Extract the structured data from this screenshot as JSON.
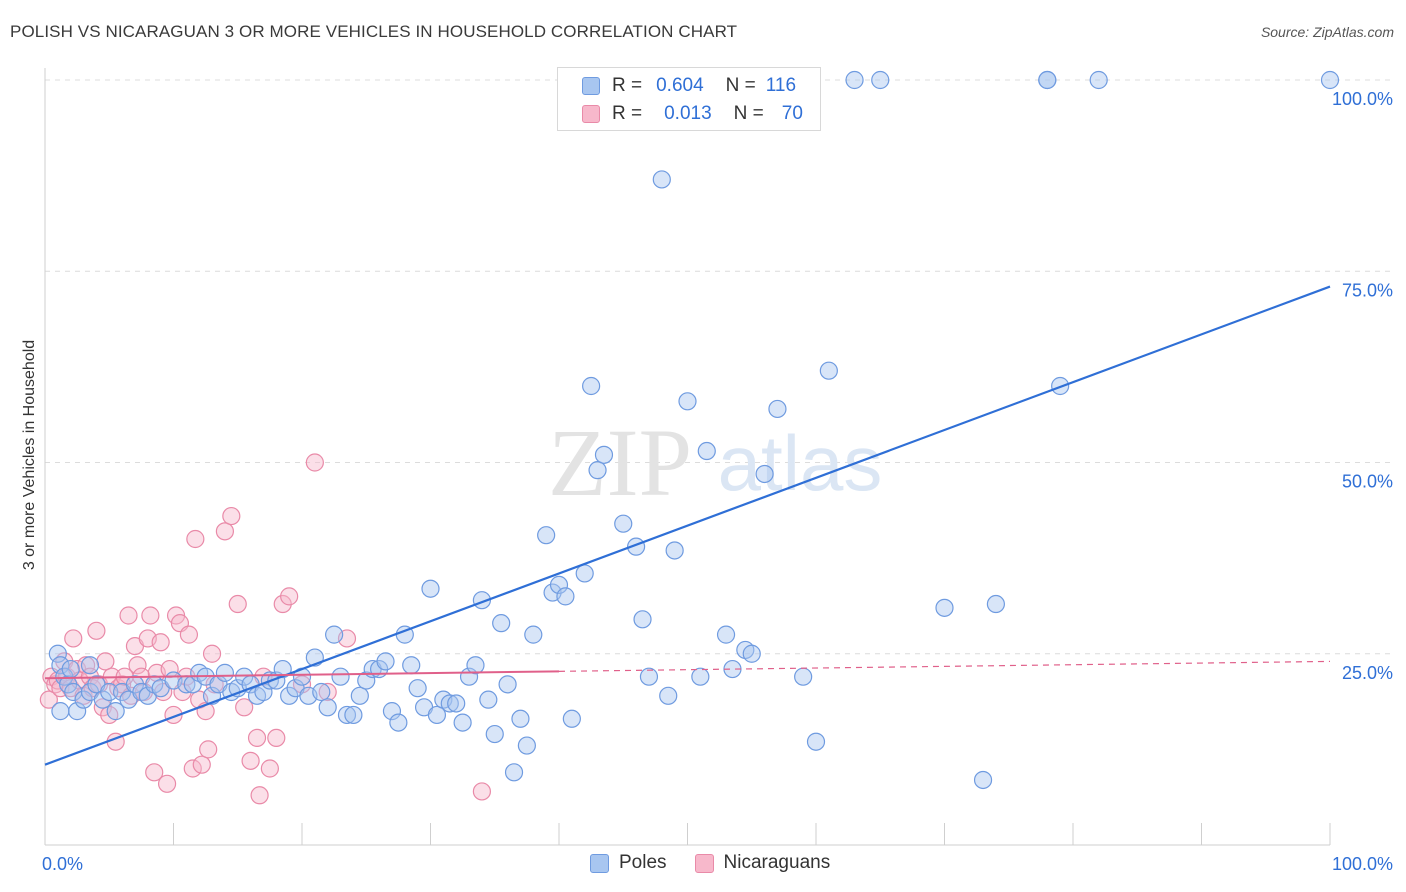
{
  "title": "POLISH VS NICARAGUAN 3 OR MORE VEHICLES IN HOUSEHOLD CORRELATION CHART",
  "source": "Source: ZipAtlas.com",
  "watermark": {
    "zip": "ZIP",
    "atlas": "atlas"
  },
  "legend": {
    "rows": [
      {
        "r_label": "R =",
        "r_value": "0.604",
        "n_label": "N =",
        "n_value": "116"
      },
      {
        "r_label": "R =",
        "r_value": "0.013",
        "n_label": "N =",
        "n_value": "70"
      }
    ]
  },
  "bottom_legend": {
    "poles": "Poles",
    "nicaraguans": "Nicaraguans"
  },
  "colors": {
    "poles_fill": "#a8c6f0",
    "poles_stroke": "#6f9be0",
    "poles_line": "#2f6fd6",
    "nic_fill": "#f7b8cb",
    "nic_stroke": "#e98aa8",
    "nic_line": "#e0608a",
    "grid": "#dcdcdc",
    "tick_text": "#2f6fd6"
  },
  "chart_data": {
    "type": "scatter",
    "title": "POLISH VS NICARAGUAN 3 OR MORE VEHICLES IN HOUSEHOLD CORRELATION CHART",
    "xlabel": "",
    "ylabel": "3 or more Vehicles in Household",
    "xlim": [
      0,
      100
    ],
    "ylim": [
      0,
      100
    ],
    "x_tick_labels": [
      {
        "value": 0,
        "label": "0.0%"
      },
      {
        "value": 100,
        "label": "100.0%"
      }
    ],
    "y_tick_labels": [
      {
        "value": 25,
        "label": "25.0%"
      },
      {
        "value": 50,
        "label": "50.0%"
      },
      {
        "value": 75,
        "label": "75.0%"
      },
      {
        "value": 100,
        "label": "100.0%"
      }
    ],
    "series": [
      {
        "name": "Poles",
        "R": 0.604,
        "N": 116,
        "trend": {
          "x": [
            0,
            100
          ],
          "y": [
            10.5,
            73.0
          ],
          "style": "solid"
        },
        "points": [
          [
            1.0,
            25
          ],
          [
            1.2,
            23.5
          ],
          [
            1.5,
            22
          ],
          [
            1.8,
            21
          ],
          [
            2.0,
            23
          ],
          [
            2.2,
            20
          ],
          [
            2.5,
            17.5
          ],
          [
            3.0,
            19
          ],
          [
            3.5,
            20
          ],
          [
            4.0,
            21
          ],
          [
            4.5,
            19
          ],
          [
            5.0,
            20
          ],
          [
            5.5,
            17.5
          ],
          [
            6.0,
            20
          ],
          [
            6.5,
            19
          ],
          [
            7.0,
            21
          ],
          [
            7.5,
            20
          ],
          [
            8.0,
            19.5
          ],
          [
            8.5,
            21
          ],
          [
            9.0,
            20.5
          ],
          [
            10,
            21.5
          ],
          [
            11,
            21
          ],
          [
            11.5,
            21
          ],
          [
            12,
            22.5
          ],
          [
            12.5,
            22
          ],
          [
            13,
            19.5
          ],
          [
            13.5,
            21
          ],
          [
            14,
            22.5
          ],
          [
            14.5,
            20
          ],
          [
            15,
            20.5
          ],
          [
            15.5,
            22
          ],
          [
            16,
            21
          ],
          [
            16.5,
            19.5
          ],
          [
            17,
            20
          ],
          [
            17.5,
            21.5
          ],
          [
            18,
            21.5
          ],
          [
            18.5,
            23
          ],
          [
            19,
            19.5
          ],
          [
            19.5,
            20.5
          ],
          [
            20,
            22
          ],
          [
            20.5,
            19.5
          ],
          [
            21,
            24.5
          ],
          [
            21.5,
            20
          ],
          [
            22,
            18
          ],
          [
            22.5,
            27.5
          ],
          [
            23,
            22
          ],
          [
            23.5,
            17
          ],
          [
            24,
            17
          ],
          [
            24.5,
            19.5
          ],
          [
            25,
            21.5
          ],
          [
            25.5,
            23
          ],
          [
            26,
            23
          ],
          [
            26.5,
            24
          ],
          [
            27,
            17.5
          ],
          [
            27.5,
            16
          ],
          [
            28,
            27.5
          ],
          [
            28.5,
            23.5
          ],
          [
            29,
            20.5
          ],
          [
            29.5,
            18
          ],
          [
            30,
            33.5
          ],
          [
            30.5,
            17
          ],
          [
            31,
            19
          ],
          [
            31.5,
            18.5
          ],
          [
            32,
            18.5
          ],
          [
            32.5,
            16
          ],
          [
            33,
            22
          ],
          [
            33.5,
            23.5
          ],
          [
            34,
            32
          ],
          [
            34.5,
            19
          ],
          [
            35,
            14.5
          ],
          [
            35.5,
            29
          ],
          [
            36,
            21
          ],
          [
            36.5,
            9.5
          ],
          [
            37,
            16.5
          ],
          [
            37.5,
            13
          ],
          [
            38,
            27.5
          ],
          [
            39,
            40.5
          ],
          [
            39.5,
            33
          ],
          [
            40,
            34
          ],
          [
            40.5,
            32.5
          ],
          [
            41,
            16.5
          ],
          [
            42,
            35.5
          ],
          [
            42.5,
            60
          ],
          [
            43,
            49
          ],
          [
            43.5,
            51
          ],
          [
            45,
            42
          ],
          [
            46,
            39
          ],
          [
            46.5,
            29.5
          ],
          [
            47,
            22
          ],
          [
            48,
            87
          ],
          [
            48.5,
            19.5
          ],
          [
            49,
            38.5
          ],
          [
            50,
            58
          ],
          [
            51,
            22
          ],
          [
            51.5,
            51.5
          ],
          [
            53,
            27.5
          ],
          [
            53.5,
            23
          ],
          [
            54.5,
            25.5
          ],
          [
            55,
            25
          ],
          [
            56,
            48.5
          ],
          [
            57,
            57
          ],
          [
            59,
            22
          ],
          [
            60,
            13.5
          ],
          [
            61,
            62
          ],
          [
            63,
            100
          ],
          [
            65,
            100
          ],
          [
            70,
            31
          ],
          [
            73,
            8.5
          ],
          [
            74,
            31.5
          ],
          [
            78,
            100
          ],
          [
            78,
            100
          ],
          [
            79,
            60
          ],
          [
            82,
            100
          ],
          [
            100,
            100
          ],
          [
            1.2,
            17.5
          ],
          [
            3.5,
            23.5
          ]
        ]
      },
      {
        "name": "Nicaraguans",
        "R": 0.013,
        "N": 70,
        "trend": {
          "x": [
            0,
            40,
            100
          ],
          "y": [
            21.8,
            22.7,
            24.0
          ],
          "style": "solid-then-dashed"
        },
        "points": [
          [
            0.3,
            19
          ],
          [
            0.5,
            22
          ],
          [
            0.8,
            21
          ],
          [
            1.0,
            21.5
          ],
          [
            1.2,
            20.5
          ],
          [
            1.5,
            24
          ],
          [
            1.7,
            22
          ],
          [
            2.0,
            20.5
          ],
          [
            2.2,
            27
          ],
          [
            2.5,
            23
          ],
          [
            2.7,
            21.5
          ],
          [
            3.0,
            19.5
          ],
          [
            3.2,
            23.5
          ],
          [
            3.5,
            22
          ],
          [
            3.7,
            20.5
          ],
          [
            4.0,
            28
          ],
          [
            4.2,
            21
          ],
          [
            4.5,
            18
          ],
          [
            4.7,
            24
          ],
          [
            5.0,
            17
          ],
          [
            5.2,
            22
          ],
          [
            5.5,
            13.5
          ],
          [
            5.7,
            20.5
          ],
          [
            6.0,
            21
          ],
          [
            6.2,
            22
          ],
          [
            6.5,
            30
          ],
          [
            6.7,
            19.5
          ],
          [
            7.0,
            26
          ],
          [
            7.2,
            23.5
          ],
          [
            7.5,
            22
          ],
          [
            7.7,
            20
          ],
          [
            8.0,
            27
          ],
          [
            8.2,
            30
          ],
          [
            8.5,
            9.5
          ],
          [
            8.7,
            22.5
          ],
          [
            9.0,
            26.5
          ],
          [
            9.2,
            20
          ],
          [
            9.5,
            8
          ],
          [
            9.7,
            23
          ],
          [
            10,
            17
          ],
          [
            10.2,
            30
          ],
          [
            10.5,
            29
          ],
          [
            10.7,
            20
          ],
          [
            11,
            22
          ],
          [
            11.2,
            27.5
          ],
          [
            11.5,
            10
          ],
          [
            11.7,
            40
          ],
          [
            12,
            19
          ],
          [
            12.2,
            10.5
          ],
          [
            12.5,
            17.5
          ],
          [
            12.7,
            12.5
          ],
          [
            13,
            25
          ],
          [
            13.2,
            21
          ],
          [
            14,
            41
          ],
          [
            14.5,
            43
          ],
          [
            15,
            31.5
          ],
          [
            15.5,
            18
          ],
          [
            16,
            11
          ],
          [
            16.5,
            14
          ],
          [
            16.7,
            6.5
          ],
          [
            17,
            22
          ],
          [
            17.5,
            10
          ],
          [
            18,
            14
          ],
          [
            18.5,
            31.5
          ],
          [
            19,
            32.5
          ],
          [
            20,
            21
          ],
          [
            21,
            50
          ],
          [
            22,
            20
          ],
          [
            23.5,
            27
          ],
          [
            34,
            7
          ]
        ]
      }
    ]
  }
}
